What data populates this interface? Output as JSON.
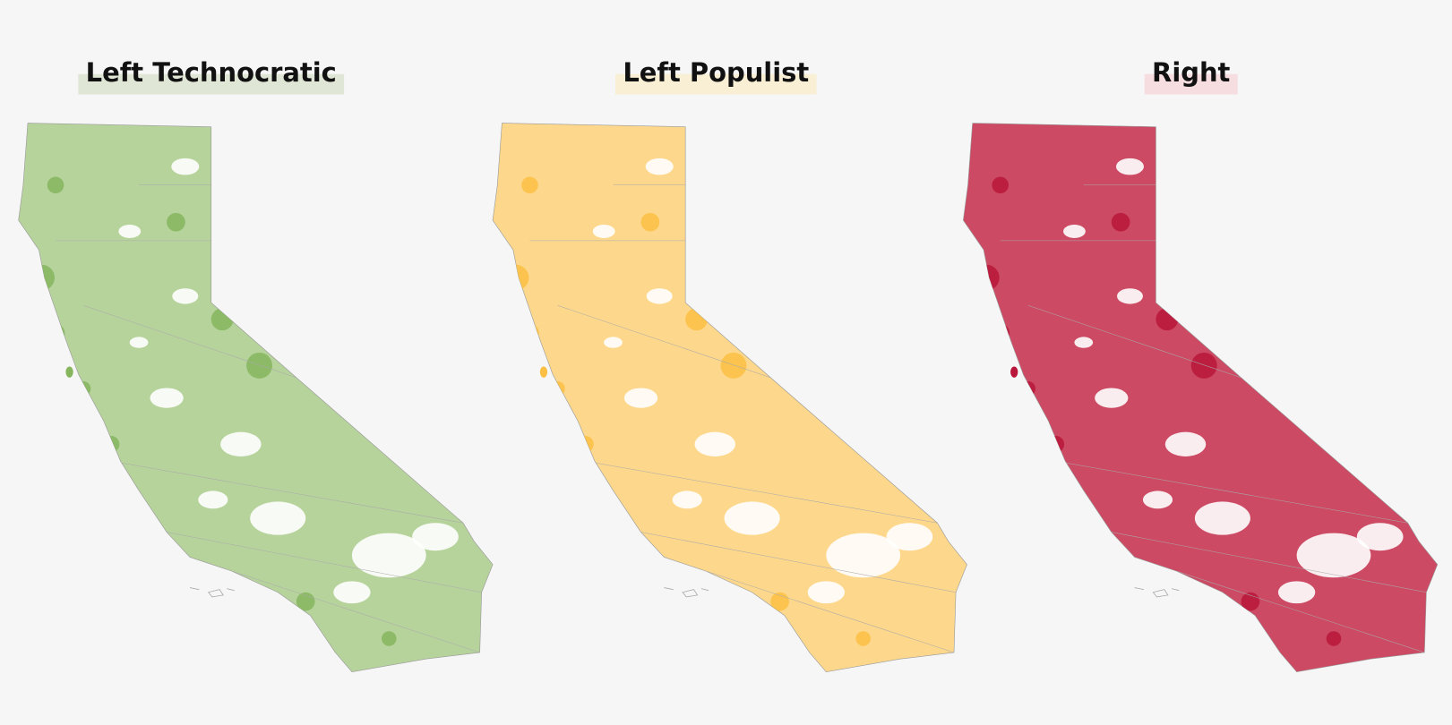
{
  "maps": [
    {
      "title": "Left Technocratic",
      "color": "#b7d39c",
      "accent": "#86b55e",
      "highlight": "#dfe6d6"
    },
    {
      "title": "Left Populist",
      "color": "#fdd88c",
      "accent": "#fbbf43",
      "highlight": "#f8efd5"
    },
    {
      "title": "Right",
      "color": "#cc4a63",
      "accent": "#b8163a",
      "highlight": "#f5dde0"
    }
  ]
}
